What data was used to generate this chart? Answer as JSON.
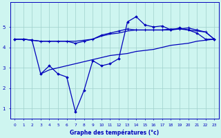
{
  "xlabel": "Graphe des températures (°c)",
  "background_color": "#cef5f0",
  "grid_color": "#a0d0cc",
  "line_color": "#0000bb",
  "line1_x": [
    0,
    1,
    2,
    3,
    4,
    5,
    6,
    7,
    8,
    9,
    10,
    11,
    12,
    13,
    14,
    15,
    16,
    17,
    18,
    19,
    20,
    21,
    22,
    23
  ],
  "line1_y": [
    4.4,
    4.4,
    4.35,
    4.3,
    4.3,
    4.3,
    4.3,
    4.3,
    4.35,
    4.4,
    4.55,
    4.65,
    4.7,
    4.8,
    4.85,
    4.85,
    4.85,
    4.85,
    4.9,
    4.9,
    4.85,
    4.8,
    4.75,
    4.4
  ],
  "line2_x": [
    0,
    1,
    2,
    3,
    4,
    5,
    6,
    7,
    8,
    9,
    10,
    11,
    12,
    13,
    14,
    15,
    16,
    17,
    18,
    19,
    20,
    21,
    22,
    23
  ],
  "line2_y": [
    4.4,
    4.4,
    4.35,
    4.3,
    4.3,
    4.3,
    4.3,
    4.2,
    4.3,
    4.4,
    4.6,
    4.7,
    4.8,
    4.9,
    4.85,
    4.85,
    4.85,
    4.85,
    4.85,
    4.9,
    4.95,
    4.85,
    4.75,
    4.4
  ],
  "line3_x": [
    0,
    1,
    2,
    3,
    4,
    5,
    6,
    7,
    8,
    9,
    10,
    11,
    12,
    13,
    14,
    15,
    16,
    17,
    18,
    19,
    20,
    21,
    22,
    23
  ],
  "line3_y": [
    4.4,
    4.4,
    4.35,
    2.7,
    3.1,
    2.7,
    2.55,
    0.85,
    1.9,
    3.35,
    3.1,
    3.2,
    3.45,
    5.25,
    5.5,
    5.1,
    5.0,
    5.05,
    4.85,
    4.95,
    4.85,
    4.7,
    4.4,
    4.4
  ],
  "line4_x": [
    3,
    4,
    5,
    6,
    7,
    8,
    9,
    10,
    11,
    12,
    13,
    14,
    15,
    16,
    17,
    18,
    19,
    20,
    21,
    22,
    23
  ],
  "line4_y": [
    2.7,
    2.9,
    3.0,
    3.1,
    3.2,
    3.3,
    3.4,
    3.5,
    3.6,
    3.65,
    3.7,
    3.8,
    3.85,
    3.9,
    4.0,
    4.1,
    4.15,
    4.2,
    4.3,
    4.35,
    4.4
  ],
  "ylim": [
    0.5,
    6.2
  ],
  "yticks": [
    1,
    2,
    3,
    4,
    5
  ],
  "xticks": [
    0,
    1,
    2,
    3,
    4,
    5,
    6,
    7,
    8,
    9,
    10,
    11,
    12,
    13,
    14,
    15,
    16,
    17,
    18,
    19,
    20,
    21,
    22,
    23
  ]
}
